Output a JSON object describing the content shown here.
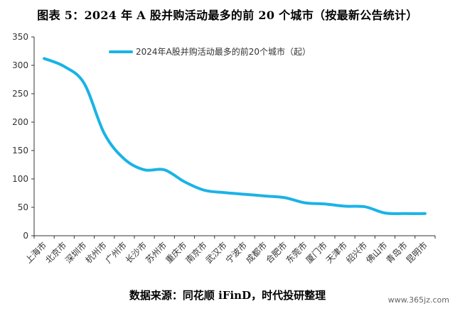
{
  "title": "图表 5：2024 年 A 股并购活动最多的前 20 个城市（按最新公告统计）",
  "source": "数据来源：同花顺 iFinD，时代投研整理",
  "watermark": "www.365jz.com",
  "chart_data": {
    "type": "line",
    "categories": [
      "上海市",
      "北京市",
      "深圳市",
      "杭州市",
      "广州市",
      "长沙市",
      "苏州市",
      "重庆市",
      "南京市",
      "武汉市",
      "宁波市",
      "成都市",
      "合肥市",
      "东莞市",
      "厦门市",
      "天津市",
      "绍兴市",
      "佛山市",
      "青岛市",
      "昆明市"
    ],
    "series": [
      {
        "name": "2024年A股并购活动最多的前20个城市（起）",
        "values": [
          312,
          298,
          268,
          180,
          135,
          116,
          116,
          95,
          80,
          76,
          73,
          70,
          67,
          58,
          56,
          52,
          51,
          40,
          39,
          39
        ],
        "color": "#1ab3e6"
      }
    ],
    "yticks": [
      0,
      50,
      100,
      150,
      200,
      250,
      300,
      350
    ],
    "ylim": [
      0,
      350
    ],
    "grid": false,
    "legend": "top"
  }
}
